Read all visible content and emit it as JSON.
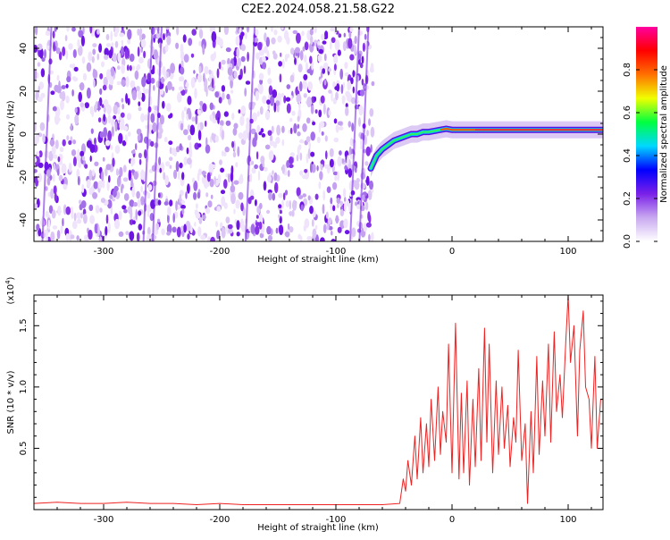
{
  "title": "C2E2.2024.058.21.58.G22",
  "chart_data": [
    {
      "type": "heatmap",
      "xlabel": "Height of straight line (km)",
      "ylabel": "Frequency (Hz)",
      "xlim": [
        -360,
        130
      ],
      "ylim": [
        -50,
        50
      ],
      "xticks": [
        {
          "value": -300,
          "label": "-300"
        },
        {
          "value": -200,
          "label": "-200"
        },
        {
          "value": -100,
          "label": "-100"
        },
        {
          "value": 0,
          "label": "0"
        },
        {
          "value": 100,
          "label": "100"
        }
      ],
      "yticks": [
        {
          "value": -40,
          "label": "-40"
        },
        {
          "value": -20,
          "label": "-20"
        },
        {
          "value": 0,
          "label": "0"
        },
        {
          "value": 20,
          "label": "20"
        },
        {
          "value": 40,
          "label": "40"
        }
      ],
      "noise_region_x": [
        -360,
        -68
      ],
      "signal_trace": {
        "x": [
          -70,
          -65,
          -60,
          -55,
          -50,
          -45,
          -40,
          -35,
          -30,
          -25,
          -20,
          -15,
          -10,
          -5,
          0,
          20,
          40,
          60,
          80,
          100,
          120,
          130
        ],
        "y": [
          -16,
          -10,
          -7,
          -5,
          -3,
          -2,
          -1,
          0,
          0,
          1,
          1,
          1.5,
          2,
          2.5,
          2,
          2,
          2,
          2,
          2,
          2,
          2,
          2
        ]
      },
      "colorbar": {
        "label": "Normalized spectral amplitude",
        "range": [
          0,
          1
        ],
        "ticks": [
          {
            "value": 0.0,
            "label": "0.0"
          },
          {
            "value": 0.2,
            "label": "0.2"
          },
          {
            "value": 0.4,
            "label": "0.4"
          },
          {
            "value": 0.6,
            "label": "0.6"
          },
          {
            "value": 0.8,
            "label": "0.8"
          }
        ],
        "colormap": [
          "#ffffff",
          "#c8a8f0",
          "#7a20e8",
          "#0000ff",
          "#00d8ff",
          "#00ff40",
          "#f0ff00",
          "#ff7000",
          "#ff0000",
          "#ff00a0"
        ]
      }
    },
    {
      "type": "line",
      "xlabel": "Height of straight line (km)",
      "ylabel": "SNR (10 * v/v)",
      "y_multiplier_label": "(x10",
      "y_multiplier_exp": "4",
      "y_multiplier_close": ")",
      "xlim": [
        -360,
        130
      ],
      "ylim": [
        0,
        1.75
      ],
      "xticks": [
        {
          "value": -300,
          "label": "-300"
        },
        {
          "value": -200,
          "label": "-200"
        },
        {
          "value": -100,
          "label": "-100"
        },
        {
          "value": 0,
          "label": "0"
        },
        {
          "value": 100,
          "label": "100"
        }
      ],
      "yticks": [
        {
          "value": 0.5,
          "label": "0.5"
        },
        {
          "value": 1.0,
          "label": "1.0"
        },
        {
          "value": 1.5,
          "label": "1.5"
        }
      ],
      "line_color": "#ee2222",
      "series": [
        {
          "x": [
            -360,
            -340,
            -320,
            -300,
            -280,
            -260,
            -240,
            -220,
            -200,
            -180,
            -160,
            -140,
            -120,
            -100,
            -80,
            -60,
            -45,
            -42,
            -40,
            -38,
            -35,
            -32,
            -30,
            -27,
            -25,
            -22,
            -20,
            -18,
            -15,
            -12,
            -10,
            -8,
            -5,
            -3,
            0,
            3,
            6,
            8,
            10,
            13,
            15,
            18,
            20,
            23,
            25,
            28,
            30,
            32,
            35,
            38,
            40,
            43,
            45,
            48,
            50,
            53,
            55,
            57,
            60,
            63,
            65,
            68,
            70,
            73,
            75,
            78,
            80,
            83,
            85,
            88,
            90,
            93,
            95,
            98,
            100,
            102,
            105,
            108,
            110,
            113,
            115,
            118,
            120,
            123,
            125,
            128,
            130
          ],
          "y": [
            0.05,
            0.06,
            0.05,
            0.05,
            0.06,
            0.05,
            0.05,
            0.04,
            0.05,
            0.04,
            0.04,
            0.04,
            0.04,
            0.04,
            0.04,
            0.04,
            0.05,
            0.25,
            0.15,
            0.4,
            0.2,
            0.6,
            0.25,
            0.75,
            0.3,
            0.7,
            0.35,
            0.9,
            0.4,
            1.0,
            0.45,
            0.8,
            0.55,
            1.35,
            0.3,
            1.52,
            0.25,
            0.95,
            0.3,
            1.05,
            0.2,
            0.9,
            0.35,
            1.15,
            0.4,
            1.48,
            0.55,
            1.35,
            0.3,
            1.05,
            0.45,
            1.0,
            0.5,
            0.85,
            0.35,
            0.75,
            0.55,
            1.3,
            0.4,
            0.7,
            0.05,
            0.8,
            0.3,
            1.25,
            0.45,
            1.05,
            0.6,
            1.35,
            0.55,
            1.45,
            0.8,
            1.1,
            0.75,
            1.38,
            1.75,
            1.2,
            1.5,
            0.6,
            1.3,
            1.62,
            1.0,
            0.9,
            0.5,
            1.25,
            0.5,
            0.9,
            0.9
          ]
        }
      ]
    }
  ]
}
